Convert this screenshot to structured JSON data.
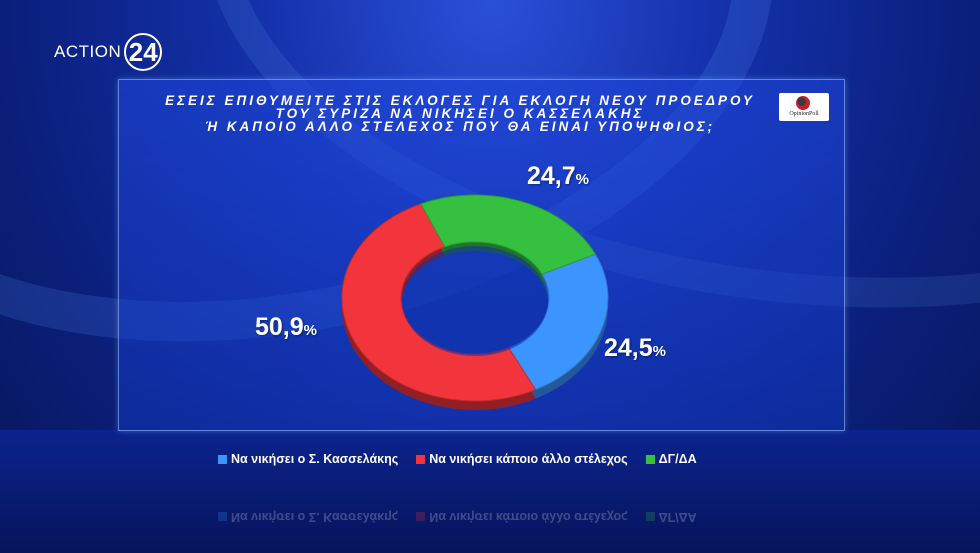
{
  "brand": {
    "logo_text": "ACTION",
    "logo_number": "24"
  },
  "badge": {
    "text": "OpinionPoll"
  },
  "chart_data": {
    "type": "pie",
    "donut": true,
    "title_lines": [
      "ΕΣΕΙΣ ΕΠΙΘΥΜΕΙΤΕ ΣΤΙΣ ΕΚΛΟΓΕΣ ΓΙΑ ΕΚΛΟΓΗ ΝΕΟΥ ΠΡΟΕΔΡΟΥ",
      "ΤΟΥ ΣΥΡΙΖΑ ΝΑ ΝΙΚΗΣΕΙ Ο ΚΑΣΣΕΛΑΚΗΣ",
      "Ή ΚΑΠΟΙΟ ΑΛΛΟ ΣΤΕΛΕΧΟΣ ΠΟΥ ΘΑ ΕΙΝΑΙ ΥΠΟΨΗΦΙΟΣ;"
    ],
    "slices": [
      {
        "label": "Να νικήσει ο Σ. Κασσελάκης",
        "value": 24.5,
        "display": "24,5",
        "color": "#3c95ff"
      },
      {
        "label": "Να νικήσει κάποιο άλλο στέλεχος",
        "value": 50.9,
        "display": "50,9",
        "color": "#f2343c"
      },
      {
        "label": "ΔΓ/ΔΑ",
        "value": 24.7,
        "display": "24,7",
        "color": "#35c13f"
      }
    ],
    "unit": "%",
    "legend_position": "bottom"
  }
}
